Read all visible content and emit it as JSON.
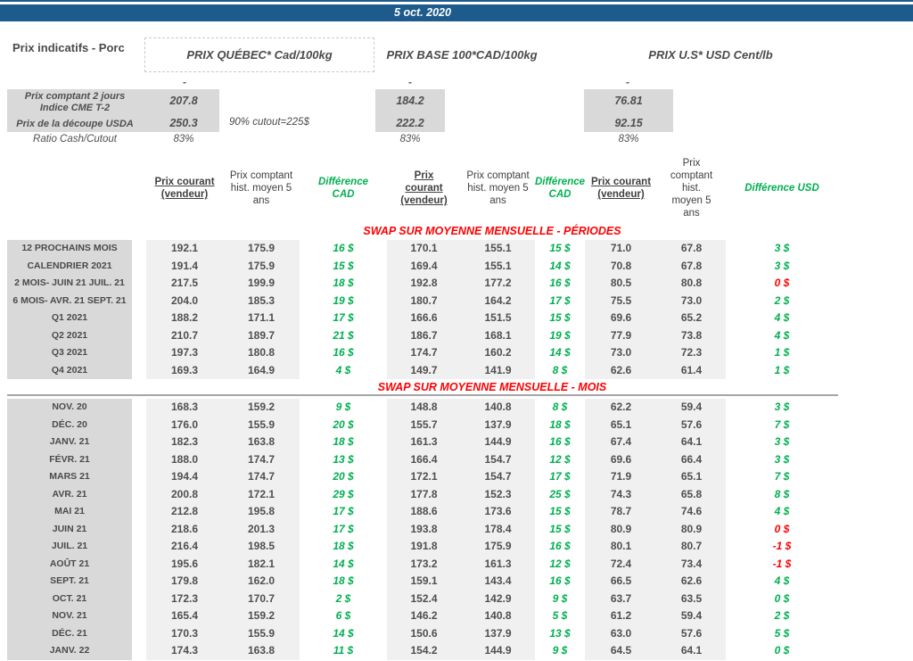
{
  "banner": {
    "date": "5 oct. 2020"
  },
  "page_title": "Prix indicatifs - Porc",
  "price_groups": {
    "quebec": {
      "title": "PRIX QUÉBEC* Cad/100kg"
    },
    "base": {
      "title": "PRIX BASE 100*CAD/100kg"
    },
    "us": {
      "title": "PRIX U.S* USD Cent/lb"
    }
  },
  "spot_summary": {
    "placeholder_dash": "-",
    "row_cme": {
      "label": "Prix comptant 2 jours\nIndice CME T-2",
      "quebec": "207.8",
      "base": "184.2",
      "us": "76.81"
    },
    "row_cutout": {
      "label": "Prix de la découpe USDA",
      "quebec": "250.3",
      "note": "90% cutout=225$",
      "base": "222.2",
      "us": "92.15"
    },
    "row_ratio": {
      "label": "Ratio Cash/Cutout",
      "quebec": "83%",
      "base": "83%",
      "us": "83%"
    }
  },
  "column_headers": {
    "quebec": {
      "current": "Prix courant\n(vendeur)",
      "hist": "Prix comptant\nhist. moyen 5\nans",
      "diff": "Différence\nCAD"
    },
    "base": {
      "current": "Prix\ncourant\n(vendeur)",
      "hist": "Prix comptant\nhist. moyen 5\nans",
      "diff": "Différence\nCAD"
    },
    "us": {
      "current": "Prix courant\n(vendeur)",
      "hist": "Prix\ncomptant\nhist.\nmoyen 5\nans",
      "diff": "Différence USD"
    }
  },
  "sections": [
    {
      "title": "SWAP SUR MOYENNE MENSUELLE - PÉRIODES",
      "rows": [
        {
          "label": "12 PROCHAINS MOIS",
          "values": [
            "192.1",
            "175.9",
            "16 $",
            "170.1",
            "155.1",
            "15 $",
            "71.0",
            "67.8",
            "3 $"
          ],
          "us_diff_negative": false
        },
        {
          "label": "CALENDRIER 2021",
          "values": [
            "191.4",
            "175.9",
            "15 $",
            "169.4",
            "155.1",
            "14 $",
            "70.8",
            "67.8",
            "3 $"
          ],
          "us_diff_negative": false
        },
        {
          "label": "2 MOIS- JUIN 21 JUIL. 21",
          "values": [
            "217.5",
            "199.9",
            "18 $",
            "192.8",
            "177.2",
            "16 $",
            "80.5",
            "80.8",
            "0 $"
          ],
          "us_diff_negative": true
        },
        {
          "label": "6 MOIS- AVR. 21 SEPT. 21",
          "values": [
            "204.0",
            "185.3",
            "19 $",
            "180.7",
            "164.2",
            "17 $",
            "75.5",
            "73.0",
            "2 $"
          ],
          "us_diff_negative": false
        },
        {
          "label": "Q1 2021",
          "values": [
            "188.2",
            "171.1",
            "17 $",
            "166.6",
            "151.5",
            "15 $",
            "69.6",
            "65.2",
            "4 $"
          ],
          "us_diff_negative": false
        },
        {
          "label": "Q2 2021",
          "values": [
            "210.7",
            "189.7",
            "21 $",
            "186.7",
            "168.1",
            "19 $",
            "77.9",
            "73.8",
            "4 $"
          ],
          "us_diff_negative": false
        },
        {
          "label": "Q3 2021",
          "values": [
            "197.3",
            "180.8",
            "16 $",
            "174.7",
            "160.2",
            "14 $",
            "73.0",
            "72.3",
            "1 $"
          ],
          "us_diff_negative": false
        },
        {
          "label": "Q4 2021",
          "values": [
            "169.3",
            "164.9",
            "4 $",
            "149.7",
            "141.9",
            "8 $",
            "62.6",
            "61.4",
            "1 $"
          ],
          "us_diff_negative": false
        }
      ]
    },
    {
      "title": "SWAP SUR MOYENNE MENSUELLE - MOIS",
      "rows": [
        {
          "label": "NOV. 20",
          "values": [
            "168.3",
            "159.2",
            "9 $",
            "148.8",
            "140.8",
            "8 $",
            "62.2",
            "59.4",
            "3 $"
          ],
          "us_diff_negative": false
        },
        {
          "label": "DÉC. 20",
          "values": [
            "176.0",
            "155.9",
            "20 $",
            "155.7",
            "137.9",
            "18 $",
            "65.1",
            "57.6",
            "7 $"
          ],
          "us_diff_negative": false
        },
        {
          "label": "JANV. 21",
          "values": [
            "182.3",
            "163.8",
            "18 $",
            "161.3",
            "144.9",
            "16 $",
            "67.4",
            "64.1",
            "3 $"
          ],
          "us_diff_negative": false
        },
        {
          "label": "FÉVR. 21",
          "values": [
            "188.0",
            "174.7",
            "13 $",
            "166.4",
            "154.7",
            "12 $",
            "69.6",
            "66.4",
            "3 $"
          ],
          "us_diff_negative": false
        },
        {
          "label": "MARS 21",
          "values": [
            "194.4",
            "174.7",
            "20 $",
            "172.1",
            "154.7",
            "17 $",
            "71.9",
            "65.1",
            "7 $"
          ],
          "us_diff_negative": false
        },
        {
          "label": "AVR. 21",
          "values": [
            "200.8",
            "172.1",
            "29 $",
            "177.8",
            "152.3",
            "25 $",
            "74.3",
            "65.8",
            "8 $"
          ],
          "us_diff_negative": false
        },
        {
          "label": "MAI 21",
          "values": [
            "212.8",
            "195.8",
            "17 $",
            "188.6",
            "173.6",
            "15 $",
            "78.7",
            "74.6",
            "4 $"
          ],
          "us_diff_negative": false
        },
        {
          "label": "JUIN 21",
          "values": [
            "218.6",
            "201.3",
            "17 $",
            "193.8",
            "178.4",
            "15 $",
            "80.9",
            "80.9",
            "0 $"
          ],
          "us_diff_negative": true
        },
        {
          "label": "JUIL. 21",
          "values": [
            "216.4",
            "198.5",
            "18 $",
            "191.8",
            "175.9",
            "16 $",
            "80.1",
            "80.7",
            "-1 $"
          ],
          "us_diff_negative": true
        },
        {
          "label": "AOÛT 21",
          "values": [
            "195.6",
            "182.1",
            "14 $",
            "173.2",
            "161.3",
            "12 $",
            "72.4",
            "73.4",
            "-1 $"
          ],
          "us_diff_negative": true
        },
        {
          "label": "SEPT. 21",
          "values": [
            "179.8",
            "162.0",
            "18 $",
            "159.1",
            "143.4",
            "16 $",
            "66.5",
            "62.6",
            "4 $"
          ],
          "us_diff_negative": false
        },
        {
          "label": "OCT. 21",
          "values": [
            "172.3",
            "170.7",
            "2 $",
            "152.4",
            "142.9",
            "9 $",
            "63.7",
            "63.5",
            "0 $"
          ],
          "us_diff_negative": false
        },
        {
          "label": "NOV. 21",
          "values": [
            "165.4",
            "159.2",
            "6 $",
            "146.2",
            "140.8",
            "5 $",
            "61.2",
            "59.4",
            "2 $"
          ],
          "us_diff_negative": false
        },
        {
          "label": "DÉC. 21",
          "values": [
            "170.3",
            "155.9",
            "14 $",
            "150.6",
            "137.9",
            "13 $",
            "63.0",
            "57.6",
            "5 $"
          ],
          "us_diff_negative": false
        },
        {
          "label": "JANV. 22",
          "values": [
            "174.3",
            "163.8",
            "11 $",
            "154.2",
            "144.9",
            "9 $",
            "64.5",
            "64.1",
            "0 $"
          ],
          "us_diff_negative": false
        }
      ]
    }
  ],
  "colors": {
    "banner_blue": "#1E5B8D",
    "positive_green": "#00B050",
    "negative_red": "#FF0000",
    "label_gray": "#D9D9D9",
    "column_gray": "#F0F0F0"
  }
}
